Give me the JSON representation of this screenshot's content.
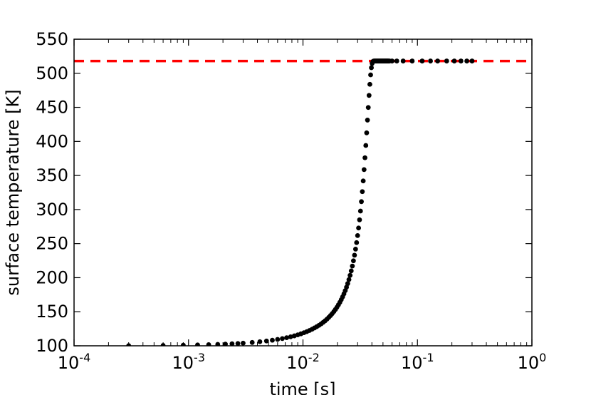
{
  "chart_data": {
    "type": "scatter",
    "title": "",
    "xlabel": "time [s]",
    "ylabel": "surface temperature [K]",
    "xscale": "log",
    "xlim": [
      0.0001,
      1
    ],
    "ylim": [
      100,
      550
    ],
    "x_ticks": [
      {
        "value": 0.0001,
        "base": "10",
        "exp": "-4"
      },
      {
        "value": 0.001,
        "base": "10",
        "exp": "-3"
      },
      {
        "value": 0.01,
        "base": "10",
        "exp": "-2"
      },
      {
        "value": 0.1,
        "base": "10",
        "exp": "-1"
      },
      {
        "value": 1,
        "base": "10",
        "exp": "0"
      }
    ],
    "y_ticks": [
      "100",
      "150",
      "200",
      "250",
      "300",
      "350",
      "400",
      "450",
      "500",
      "550"
    ],
    "grid": false,
    "series": [
      {
        "kind": "points",
        "color": "#000000",
        "x": [
          0.0003,
          0.0006,
          0.0009,
          0.0012,
          0.0015,
          0.0018,
          0.0021,
          0.0024,
          0.0027,
          0.003,
          0.0036,
          0.0042,
          0.0048,
          0.0054,
          0.006,
          0.0066,
          0.0072,
          0.0078,
          0.0084,
          0.009,
          0.0096,
          0.0102,
          0.0108,
          0.0114,
          0.012,
          0.0126,
          0.0132,
          0.0138,
          0.0144,
          0.015,
          0.0156,
          0.0162,
          0.0168,
          0.0174,
          0.018,
          0.0186,
          0.0192,
          0.0198,
          0.0204,
          0.021,
          0.0216,
          0.0222,
          0.0228,
          0.0234,
          0.024,
          0.0246,
          0.0252,
          0.0258,
          0.0264,
          0.027,
          0.0276,
          0.0282,
          0.0288,
          0.0294,
          0.03,
          0.0306,
          0.0312,
          0.0318,
          0.0324,
          0.033,
          0.0336,
          0.0342,
          0.0348,
          0.0354,
          0.036,
          0.0366,
          0.0372,
          0.0378,
          0.0384,
          0.039,
          0.0396,
          0.0402,
          0.0408,
          0.0414,
          0.042,
          0.0426,
          0.0432,
          0.0438,
          0.0444,
          0.045,
          0.0456,
          0.0462,
          0.0468,
          0.0474,
          0.048,
          0.0486,
          0.0492,
          0.0498,
          0.0504,
          0.051,
          0.0516,
          0.0522,
          0.0528,
          0.0534,
          0.054,
          0.0546,
          0.0552,
          0.0558,
          0.057,
          0.06,
          0.066,
          0.075,
          0.09,
          0.11,
          0.13,
          0.15,
          0.18,
          0.21,
          0.24,
          0.27,
          0.3
        ],
        "y": [
          100.2,
          100.5,
          100.9,
          101.3,
          101.7,
          102.1,
          102.5,
          103.0,
          103.4,
          103.9,
          104.9,
          106.0,
          107.1,
          108.2,
          109.4,
          110.6,
          111.9,
          113.2,
          114.6,
          116.1,
          117.6,
          119.2,
          120.8,
          122.5,
          124.3,
          126.2,
          128.1,
          130.1,
          132.2,
          134.4,
          136.7,
          139.1,
          141.7,
          144.4,
          147.2,
          150.2,
          153.3,
          156.6,
          160.1,
          163.8,
          167.7,
          171.9,
          176.3,
          181.0,
          186.0,
          191.4,
          197.2,
          203.4,
          210.0,
          217.1,
          224.8,
          233.0,
          241.9,
          251.5,
          261.8,
          272.9,
          284.9,
          297.8,
          311.6,
          326.3,
          342.0,
          358.6,
          376.0,
          394.1,
          412.6,
          431.3,
          449.8,
          467.5,
          483.8,
          497.7,
          508.2,
          514.5,
          517.2,
          517.9,
          518.0,
          518.0,
          518.0,
          518.0,
          518.0,
          518.0,
          518.0,
          518.0,
          518.0,
          518.0,
          518.0,
          518.0,
          518.0,
          518.0,
          518.0,
          518.0,
          518.0,
          518.0,
          518.0,
          518.0,
          518.0,
          518.0,
          518.0,
          518.0,
          518.0,
          518.0,
          518.0,
          518.0,
          518.0,
          518.0,
          518.0,
          518.0,
          518.0,
          518.0,
          518.0,
          518.0,
          518.0
        ]
      },
      {
        "kind": "hline",
        "color": "#ff0000",
        "linestyle": "dashed",
        "y": 518
      }
    ]
  }
}
